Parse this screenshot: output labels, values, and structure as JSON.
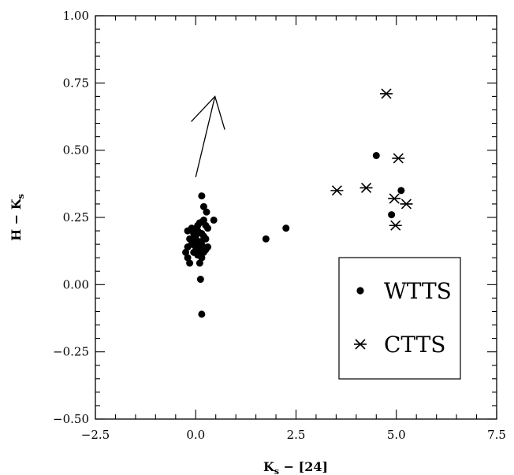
{
  "chart_data": {
    "type": "scatter",
    "xlabel": {
      "main": "K",
      "sub": "s",
      "rest": " − [24]"
    },
    "ylabel": {
      "main": "H − K",
      "sub": "s"
    },
    "xlim": [
      -2.5,
      7.5
    ],
    "ylim": [
      -0.5,
      1.0
    ],
    "xticks": [
      {
        "value": -2.5,
        "label": "−2.5"
      },
      {
        "value": 0.0,
        "label": "0.0"
      },
      {
        "value": 2.5,
        "label": "2.5"
      },
      {
        "value": 5.0,
        "label": "5.0"
      },
      {
        "value": 7.5,
        "label": "7.5"
      }
    ],
    "yticks": [
      {
        "value": -0.5,
        "label": "−0.50"
      },
      {
        "value": -0.25,
        "label": "−0.25"
      },
      {
        "value": 0.0,
        "label": "0.00"
      },
      {
        "value": 0.25,
        "label": "0.25"
      },
      {
        "value": 0.5,
        "label": "0.50"
      },
      {
        "value": 0.75,
        "label": "0.75"
      },
      {
        "value": 1.0,
        "label": "1.00"
      }
    ],
    "grid": false,
    "legend_position": "lower-right",
    "series": [
      {
        "name": "WTTS",
        "marker": "filled-circle",
        "points": [
          [
            0.15,
            0.33
          ],
          [
            0.2,
            0.29
          ],
          [
            0.27,
            0.27
          ],
          [
            0.45,
            0.24
          ],
          [
            0.2,
            0.24
          ],
          [
            0.1,
            0.23
          ],
          [
            0.25,
            0.22
          ],
          [
            0.3,
            0.21
          ],
          [
            0.05,
            0.2
          ],
          [
            0.15,
            0.19
          ],
          [
            -0.2,
            0.2
          ],
          [
            -0.05,
            0.19
          ],
          [
            0.0,
            0.18
          ],
          [
            0.2,
            0.18
          ],
          [
            0.25,
            0.17
          ],
          [
            -0.15,
            0.17
          ],
          [
            0.05,
            0.16
          ],
          [
            0.1,
            0.16
          ],
          [
            -0.1,
            0.15
          ],
          [
            0.15,
            0.15
          ],
          [
            0.0,
            0.14
          ],
          [
            -0.2,
            0.14
          ],
          [
            0.3,
            0.14
          ],
          [
            -0.25,
            0.12
          ],
          [
            0.1,
            0.13
          ],
          [
            0.25,
            0.13
          ],
          [
            -0.05,
            0.12
          ],
          [
            0.05,
            0.11
          ],
          [
            -0.2,
            0.1
          ],
          [
            0.15,
            0.1
          ],
          [
            -0.15,
            0.08
          ],
          [
            0.1,
            0.08
          ],
          [
            -0.1,
            0.21
          ],
          [
            0.05,
            0.22
          ],
          [
            -0.05,
            0.16
          ],
          [
            0.2,
            0.12
          ],
          [
            0.12,
            0.02
          ],
          [
            0.15,
            -0.11
          ],
          [
            1.75,
            0.17
          ],
          [
            2.25,
            0.21
          ],
          [
            4.5,
            0.48
          ],
          [
            5.12,
            0.35
          ],
          [
            4.88,
            0.26
          ]
        ]
      },
      {
        "name": "CTTS",
        "marker": "asterisk",
        "points": [
          [
            4.75,
            0.71
          ],
          [
            5.05,
            0.47
          ],
          [
            3.52,
            0.35
          ],
          [
            4.25,
            0.36
          ],
          [
            4.95,
            0.32
          ],
          [
            5.25,
            0.3
          ],
          [
            4.98,
            0.22
          ]
        ]
      }
    ],
    "annotations": [
      {
        "type": "arrow",
        "from": [
          0.0,
          0.4
        ],
        "to": [
          0.48,
          0.7
        ]
      }
    ]
  }
}
